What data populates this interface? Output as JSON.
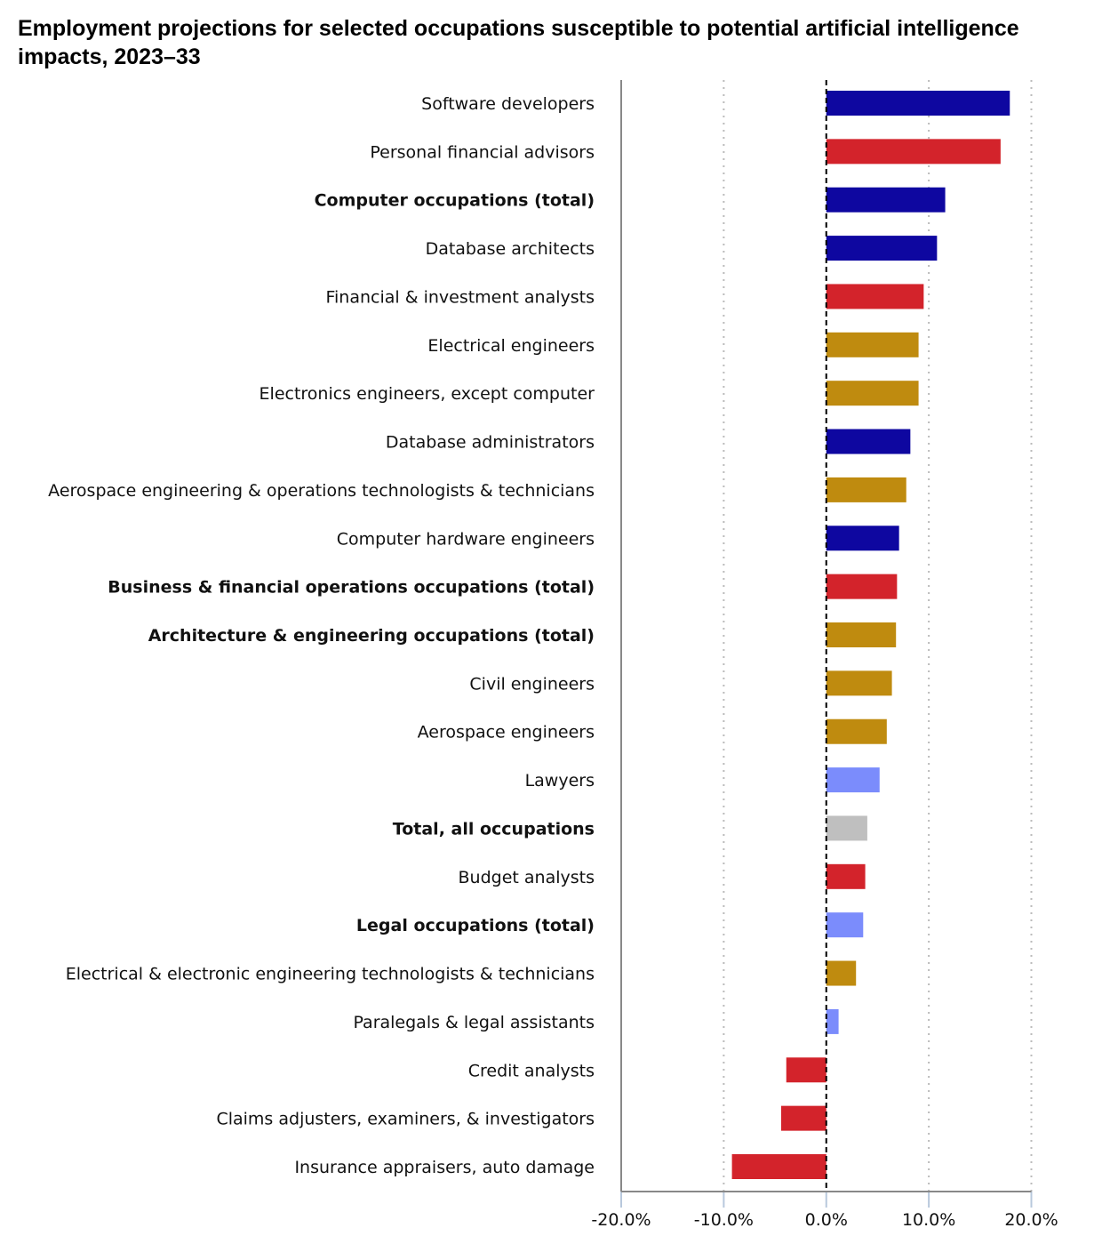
{
  "chart_data": {
    "type": "bar",
    "orientation": "horizontal",
    "title": "Employment projections for selected occupations susceptible to potential artificial intelligence impacts, 2023–33",
    "xlabel": "",
    "ylabel": "",
    "xlim": [
      -20,
      20
    ],
    "x_ticks": [
      "-20.0%",
      "-10.0%",
      "0.0%",
      "10.0%",
      "20.0%"
    ],
    "grid": "vertical dotted",
    "legend": "none",
    "colors": {
      "computer": "#0e07a0",
      "business_financial": "#d3232b",
      "architecture_engineering": "#bf8b0f",
      "legal": "#7b8cfc",
      "total": "#bfbfbf"
    },
    "categories": [
      {
        "label": "Software developers",
        "value": 17.9,
        "group": "computer",
        "bold": false
      },
      {
        "label": "Personal financial advisors",
        "value": 17.0,
        "group": "business_financial",
        "bold": false
      },
      {
        "label": "Computer occupations (total)",
        "value": 11.6,
        "group": "computer",
        "bold": true
      },
      {
        "label": "Database architects",
        "value": 10.8,
        "group": "computer",
        "bold": false
      },
      {
        "label": "Financial & investment analysts",
        "value": 9.5,
        "group": "business_financial",
        "bold": false
      },
      {
        "label": "Electrical engineers",
        "value": 9.0,
        "group": "architecture_engineering",
        "bold": false
      },
      {
        "label": "Electronics engineers, except computer",
        "value": 9.0,
        "group": "architecture_engineering",
        "bold": false
      },
      {
        "label": "Database administrators",
        "value": 8.2,
        "group": "computer",
        "bold": false
      },
      {
        "label": "Aerospace engineering & operations technologists & technicians",
        "value": 7.8,
        "group": "architecture_engineering",
        "bold": false
      },
      {
        "label": "Computer hardware engineers",
        "value": 7.1,
        "group": "computer",
        "bold": false
      },
      {
        "label": "Business & financial operations occupations (total)",
        "value": 6.9,
        "group": "business_financial",
        "bold": true
      },
      {
        "label": "Architecture & engineering occupations (total)",
        "value": 6.8,
        "group": "architecture_engineering",
        "bold": true
      },
      {
        "label": "Civil engineers",
        "value": 6.4,
        "group": "architecture_engineering",
        "bold": false
      },
      {
        "label": "Aerospace engineers",
        "value": 5.9,
        "group": "architecture_engineering",
        "bold": false
      },
      {
        "label": "Lawyers",
        "value": 5.2,
        "group": "legal",
        "bold": false
      },
      {
        "label": "Total, all occupations",
        "value": 4.0,
        "group": "total",
        "bold": true
      },
      {
        "label": "Budget analysts",
        "value": 3.8,
        "group": "business_financial",
        "bold": false
      },
      {
        "label": "Legal occupations (total)",
        "value": 3.6,
        "group": "legal",
        "bold": true
      },
      {
        "label": "Electrical & electronic engineering technologists & technicians",
        "value": 2.9,
        "group": "architecture_engineering",
        "bold": false
      },
      {
        "label": "Paralegals & legal assistants",
        "value": 1.2,
        "group": "legal",
        "bold": false
      },
      {
        "label": "Credit analysts",
        "value": -3.9,
        "group": "business_financial",
        "bold": false
      },
      {
        "label": "Claims adjusters, examiners, & investigators",
        "value": -4.4,
        "group": "business_financial",
        "bold": false
      },
      {
        "label": "Insurance appraisers, auto damage",
        "value": -9.2,
        "group": "business_financial",
        "bold": false
      }
    ]
  }
}
